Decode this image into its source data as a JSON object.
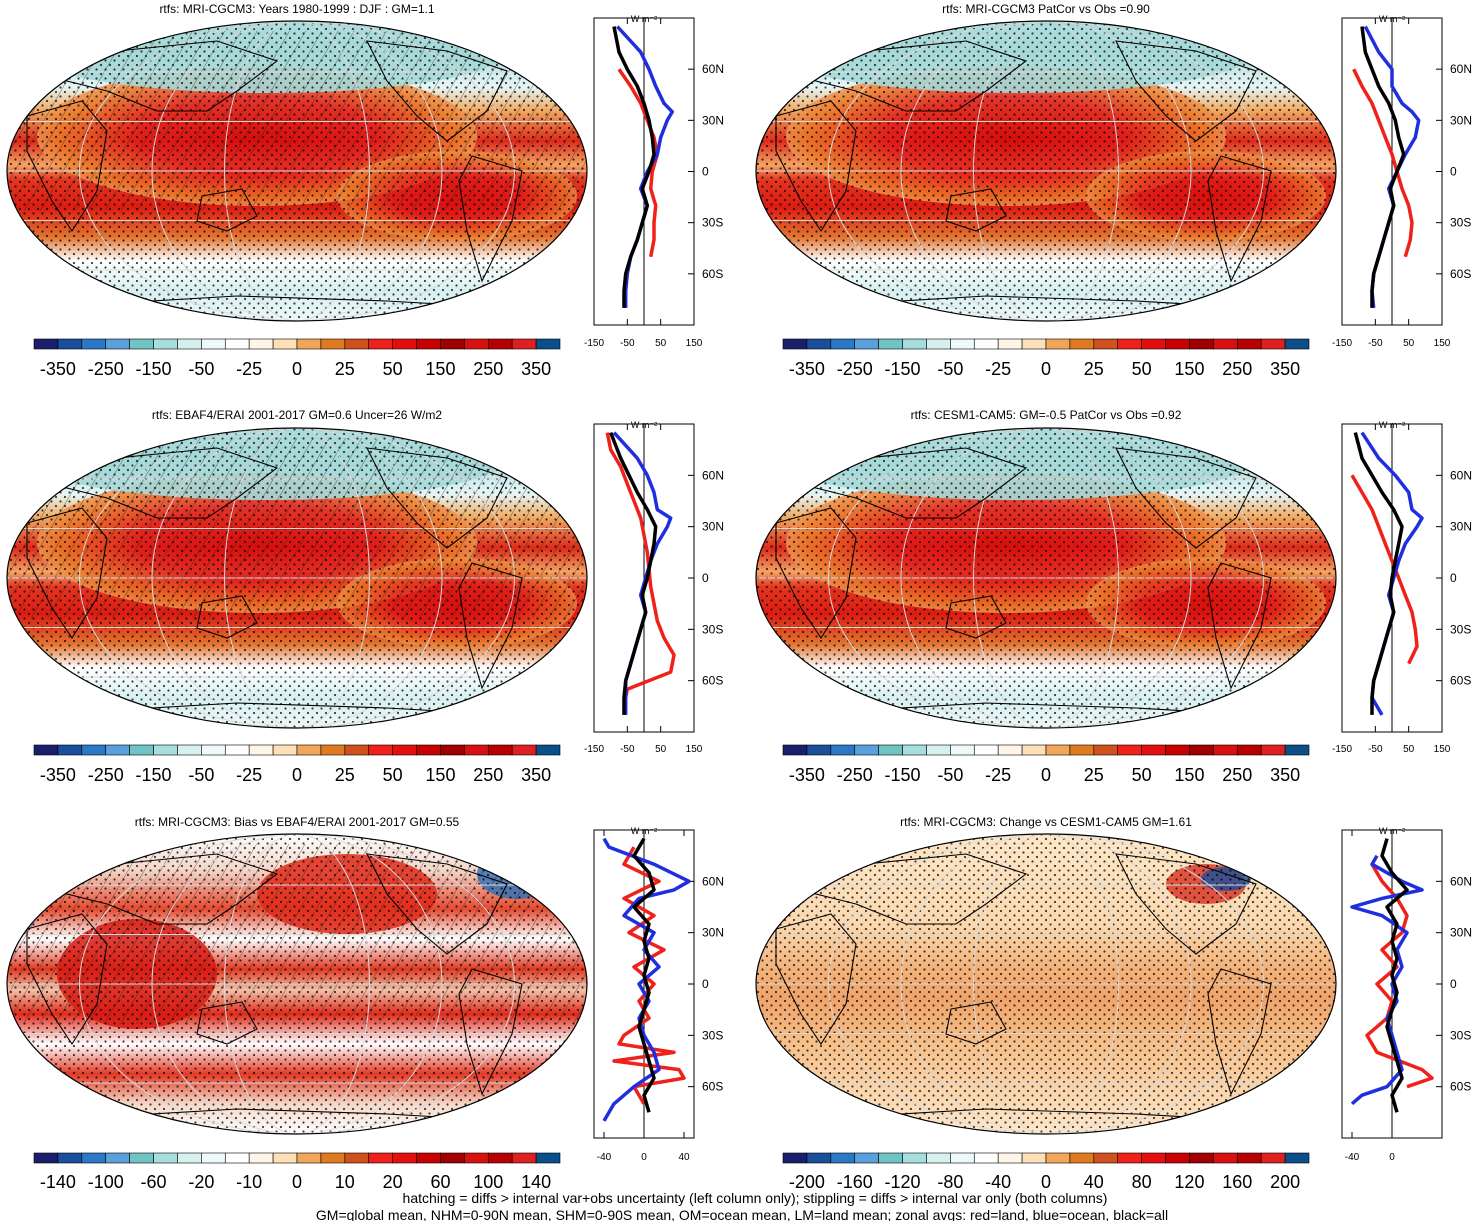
{
  "panels": [
    {
      "title": "rtfs: MRI-CGCM3: Years 1980-1999 : DJF : GM=1.1",
      "colorbar_labels": [
        "-350",
        "-250",
        "-150",
        "-50",
        "-25",
        "0",
        "25",
        "50",
        "150",
        "250",
        "350"
      ],
      "zonal_ticks": [
        "-150",
        "-50",
        "50",
        "150"
      ],
      "hatched": true
    },
    {
      "title": "rtfs: MRI-CGCM3 PatCor vs Obs =0.90",
      "colorbar_labels": [
        "-350",
        "-250",
        "-150",
        "-50",
        "-25",
        "0",
        "25",
        "50",
        "150",
        "250",
        "350"
      ],
      "zonal_ticks": [
        "-150",
        "-50",
        "50",
        "150"
      ],
      "hatched": false
    },
    {
      "title": "rtfs: EBAF4/ERAI 2001-2017 GM=0.6 Uncer=26 W/m2",
      "colorbar_labels": [
        "-350",
        "-250",
        "-150",
        "-50",
        "-25",
        "0",
        "25",
        "50",
        "150",
        "250",
        "350"
      ],
      "zonal_ticks": [
        "-150",
        "-50",
        "50",
        "150"
      ],
      "hatched": true
    },
    {
      "title": "rtfs: CESM1-CAM5: GM=-0.5 PatCor vs Obs =0.92",
      "colorbar_labels": [
        "-350",
        "-250",
        "-150",
        "-50",
        "-25",
        "0",
        "25",
        "50",
        "150",
        "250",
        "350"
      ],
      "zonal_ticks": [
        "-150",
        "-50",
        "50",
        "150"
      ],
      "hatched": false
    },
    {
      "title": "rtfs: MRI-CGCM3: Bias vs EBAF4/ERAI 2001-2017 GM=0.55",
      "colorbar_labels": [
        "-140",
        "-100",
        "-60",
        "-20",
        "-10",
        "0",
        "10",
        "20",
        "60",
        "100",
        "140"
      ],
      "zonal_ticks": [
        "-40",
        "0",
        "40"
      ],
      "hatched": true
    },
    {
      "title": "rtfs: MRI-CGCM3: Change vs CESM1-CAM5 GM=1.61",
      "colorbar_labels": [
        "-200",
        "-160",
        "-120",
        "-80",
        "-40",
        "0",
        "40",
        "80",
        "120",
        "160",
        "200"
      ],
      "zonal_ticks": [
        "-40",
        "0"
      ],
      "hatched": false
    }
  ],
  "zonal_units": "W m⁻²",
  "lat_ticks": [
    "60N",
    "30N",
    "0",
    "30S",
    "60S"
  ],
  "colorbar_colors": [
    "#1b1f6b",
    "#1a4f9c",
    "#2a78c6",
    "#5aa0dc",
    "#6fc3c3",
    "#a6dede",
    "#d6f0f0",
    "#eefafa",
    "#ffffff",
    "#fff5e8",
    "#fde0b8",
    "#f2a65a",
    "#e07a1f",
    "#d0501e",
    "#f0201a",
    "#e30f0f",
    "#c80000",
    "#a00000",
    "#d81010",
    "#b80000",
    "#e02020",
    "#0a4f8a"
  ],
  "footer": {
    "line1": "hatching = diffs > internal var+obs uncertainty (left column only); stippling = diffs > internal var only (both columns)",
    "line2": "GM=global mean, NHM=0-90N mean, SHM=0-90S mean, OM=ocean mean, LM=land mean; zonal avgs: red=land, blue=ocean, black=all"
  },
  "chart_data": [
    {
      "type": "heatmap",
      "title": "rtfs: MRI-CGCM3: Years 1980-1999 : DJF : GM=1.1",
      "zlim": [
        -350,
        350
      ],
      "zonal_mean": {
        "lat_ticks": [
          "60N",
          "30N",
          "0",
          "30S",
          "60S"
        ],
        "xlim": [
          -150,
          150
        ],
        "series": [
          {
            "name": "land",
            "color": "#f0201a",
            "lat": [
              60,
              50,
              40,
              30,
              20,
              10,
              0,
              -10,
              -20,
              -30,
              -40,
              -50
            ],
            "value": [
              -75,
              -40,
              -10,
              10,
              30,
              40,
              25,
              20,
              35,
              30,
              30,
              20
            ]
          },
          {
            "name": "ocean",
            "color": "#1f2fe0",
            "lat": [
              85,
              70,
              60,
              50,
              40,
              35,
              30,
              20,
              10,
              0,
              -10,
              -20,
              -30,
              -40,
              -50,
              -60,
              -70,
              -80
            ],
            "value": [
              -80,
              -10,
              15,
              35,
              60,
              85,
              70,
              50,
              40,
              10,
              -10,
              10,
              -5,
              -20,
              -40,
              -50,
              -55,
              -55
            ]
          },
          {
            "name": "all",
            "color": "#000000",
            "lat": [
              85,
              70,
              60,
              50,
              40,
              30,
              20,
              10,
              0,
              -10,
              -20,
              -30,
              -40,
              -50,
              -60,
              -70,
              -80
            ],
            "value": [
              -90,
              -75,
              -50,
              -20,
              0,
              15,
              25,
              30,
              15,
              -5,
              10,
              -5,
              -20,
              -40,
              -55,
              -60,
              -60
            ]
          }
        ]
      }
    },
    {
      "type": "heatmap",
      "title": "rtfs: MRI-CGCM3 PatCor vs Obs =0.90",
      "zlim": [
        -350,
        350
      ],
      "zonal_mean": {
        "lat_ticks": [
          "60N",
          "30N",
          "0",
          "30S",
          "60S"
        ],
        "xlim": [
          -150,
          150
        ],
        "series": [
          {
            "name": "land",
            "color": "#f0201a",
            "lat": [
              60,
              50,
              40,
              30,
              20,
              10,
              0,
              -10,
              -20,
              -30,
              -40,
              -50
            ],
            "value": [
              -115,
              -90,
              -60,
              -40,
              -20,
              0,
              15,
              30,
              50,
              60,
              55,
              40
            ]
          },
          {
            "name": "ocean",
            "color": "#1f2fe0",
            "lat": [
              85,
              70,
              60,
              50,
              40,
              35,
              30,
              20,
              10,
              0,
              -10,
              -20,
              -30,
              -40,
              -50,
              -60,
              -70,
              -80
            ],
            "value": [
              -80,
              -40,
              0,
              0,
              30,
              60,
              80,
              70,
              40,
              15,
              -10,
              5,
              -10,
              -25,
              -40,
              -55,
              -60,
              -55
            ]
          },
          {
            "name": "all",
            "color": "#000000",
            "lat": [
              85,
              70,
              60,
              50,
              40,
              30,
              20,
              10,
              0,
              -10,
              -20,
              -30,
              -40,
              -50,
              -60,
              -70,
              -80
            ],
            "value": [
              -90,
              -80,
              -60,
              -40,
              -10,
              10,
              20,
              35,
              15,
              -5,
              5,
              -10,
              -25,
              -40,
              -55,
              -60,
              -60
            ]
          }
        ]
      }
    },
    {
      "type": "heatmap",
      "title": "rtfs: EBAF4/ERAI 2001-2017 GM=0.6 Uncer=26 W/m2",
      "zlim": [
        -350,
        350
      ],
      "zonal_mean": {
        "lat_ticks": [
          "60N",
          "30N",
          "0",
          "30S",
          "60S"
        ],
        "xlim": [
          -150,
          150
        ],
        "series": [
          {
            "name": "land",
            "color": "#f0201a",
            "lat": [
              85,
              75,
              65,
              55,
              45,
              35,
              25,
              15,
              5,
              -5,
              -15,
              -25,
              -35,
              -45,
              -55,
              -65,
              -75
            ],
            "value": [
              -110,
              -100,
              -70,
              -50,
              -30,
              -10,
              0,
              10,
              15,
              20,
              30,
              40,
              60,
              90,
              80,
              -50,
              -60
            ]
          },
          {
            "name": "ocean",
            "color": "#1f2fe0",
            "lat": [
              85,
              70,
              60,
              50,
              40,
              35,
              30,
              20,
              10,
              0,
              -10,
              -20,
              -30,
              -40,
              -50,
              -60,
              -70,
              -80
            ],
            "value": [
              -90,
              -20,
              10,
              30,
              40,
              80,
              70,
              40,
              20,
              5,
              -10,
              5,
              -10,
              -25,
              -40,
              -55,
              -55,
              -55
            ]
          },
          {
            "name": "all",
            "color": "#000000",
            "lat": [
              85,
              70,
              60,
              50,
              40,
              30,
              20,
              10,
              0,
              -10,
              -20,
              -30,
              -40,
              -50,
              -60,
              -70,
              -80
            ],
            "value": [
              -100,
              -70,
              -45,
              -20,
              10,
              35,
              30,
              20,
              10,
              -5,
              5,
              -10,
              -25,
              -40,
              -55,
              -60,
              -60
            ]
          }
        ]
      }
    },
    {
      "type": "heatmap",
      "title": "rtfs: CESM1-CAM5: GM=-0.5 PatCor vs Obs =0.92",
      "zlim": [
        -350,
        350
      ],
      "zonal_mean": {
        "lat_ticks": [
          "60N",
          "30N",
          "0",
          "30S",
          "60S"
        ],
        "xlim": [
          -150,
          150
        ],
        "series": [
          {
            "name": "land",
            "color": "#f0201a",
            "lat": [
              60,
              50,
              40,
              30,
              20,
              10,
              0,
              -10,
              -20,
              -30,
              -40,
              -50
            ],
            "value": [
              -120,
              -90,
              -60,
              -40,
              -20,
              0,
              20,
              40,
              60,
              70,
              75,
              50
            ]
          },
          {
            "name": "ocean",
            "color": "#1f2fe0",
            "lat": [
              85,
              70,
              60,
              50,
              40,
              35,
              30,
              20,
              10,
              0,
              -10,
              -20,
              -30,
              -40,
              -50,
              -60,
              -70,
              -80
            ],
            "value": [
              -90,
              -40,
              10,
              50,
              60,
              90,
              75,
              40,
              20,
              5,
              -10,
              5,
              -10,
              -25,
              -40,
              -55,
              -60,
              -30
            ]
          },
          {
            "name": "all",
            "color": "#000000",
            "lat": [
              85,
              70,
              60,
              50,
              40,
              30,
              20,
              10,
              0,
              -10,
              -20,
              -30,
              -40,
              -50,
              -60,
              -70,
              -80
            ],
            "value": [
              -110,
              -90,
              -60,
              -30,
              5,
              30,
              20,
              10,
              0,
              -5,
              5,
              -10,
              -25,
              -40,
              -55,
              -60,
              -60
            ]
          }
        ]
      }
    },
    {
      "type": "heatmap",
      "title": "rtfs: MRI-CGCM3: Bias vs EBAF4/ERAI 2001-2017 GM=0.55",
      "zlim": [
        -140,
        140
      ],
      "zonal_mean": {
        "lat_ticks": [
          "60N",
          "30N",
          "0",
          "30S",
          "60S"
        ],
        "xlim": [
          -50,
          50
        ],
        "series": [
          {
            "name": "land",
            "color": "#f0201a",
            "lat": [
              80,
              70,
              60,
              50,
              40,
              30,
              20,
              10,
              0,
              -10,
              -20,
              -30,
              -35,
              -40,
              -45,
              -50,
              -55,
              -60,
              -70
            ],
            "value": [
              -10,
              -20,
              15,
              -20,
              10,
              -15,
              20,
              -10,
              10,
              -5,
              5,
              -20,
              -25,
              30,
              -30,
              35,
              40,
              -10,
              0
            ]
          },
          {
            "name": "ocean",
            "color": "#1f2fe0",
            "lat": [
              85,
              80,
              70,
              60,
              55,
              50,
              40,
              30,
              20,
              10,
              0,
              -10,
              -20,
              -30,
              -40,
              -50,
              -60,
              -70,
              -80
            ],
            "value": [
              -40,
              -35,
              10,
              45,
              30,
              -5,
              -20,
              10,
              0,
              15,
              -5,
              5,
              -5,
              0,
              10,
              15,
              -10,
              -30,
              -40
            ]
          },
          {
            "name": "all",
            "color": "#000000",
            "lat": [
              85,
              75,
              65,
              55,
              45,
              35,
              25,
              15,
              5,
              -5,
              -15,
              -25,
              -35,
              -45,
              -55,
              -65,
              -75
            ],
            "value": [
              0,
              -10,
              5,
              10,
              -10,
              5,
              0,
              5,
              0,
              5,
              0,
              -5,
              0,
              5,
              10,
              0,
              5
            ]
          }
        ]
      }
    },
    {
      "type": "heatmap",
      "title": "rtfs: MRI-CGCM3: Change vs CESM1-CAM5 GM=1.61",
      "zlim": [
        -200,
        200
      ],
      "zonal_mean": {
        "lat_ticks": [
          "60N",
          "30N",
          "0",
          "30S",
          "60S"
        ],
        "xlim": [
          -50,
          50
        ],
        "series": [
          {
            "name": "land",
            "color": "#f0201a",
            "lat": [
              70,
              60,
              50,
              40,
              30,
              20,
              10,
              0,
              -10,
              -20,
              -30,
              -40,
              -50,
              -55,
              -60
            ],
            "value": [
              -20,
              -10,
              5,
              15,
              10,
              -10,
              5,
              -15,
              0,
              -5,
              -25,
              -15,
              30,
              40,
              15
            ]
          },
          {
            "name": "ocean",
            "color": "#1f2fe0",
            "lat": [
              75,
              70,
              60,
              55,
              50,
              45,
              40,
              30,
              20,
              10,
              0,
              -10,
              -20,
              -30,
              -40,
              -50,
              -60,
              -65,
              -70
            ],
            "value": [
              -15,
              -20,
              10,
              30,
              -10,
              -40,
              -10,
              15,
              5,
              10,
              0,
              5,
              -5,
              0,
              5,
              10,
              -5,
              -30,
              -40
            ]
          },
          {
            "name": "all",
            "color": "#000000",
            "lat": [
              85,
              75,
              65,
              55,
              45,
              35,
              25,
              15,
              5,
              -5,
              -15,
              -25,
              -35,
              -45,
              -55,
              -65,
              -75
            ],
            "value": [
              -5,
              -10,
              0,
              15,
              -5,
              5,
              0,
              5,
              0,
              5,
              0,
              -5,
              0,
              5,
              10,
              0,
              5
            ]
          }
        ]
      }
    }
  ]
}
